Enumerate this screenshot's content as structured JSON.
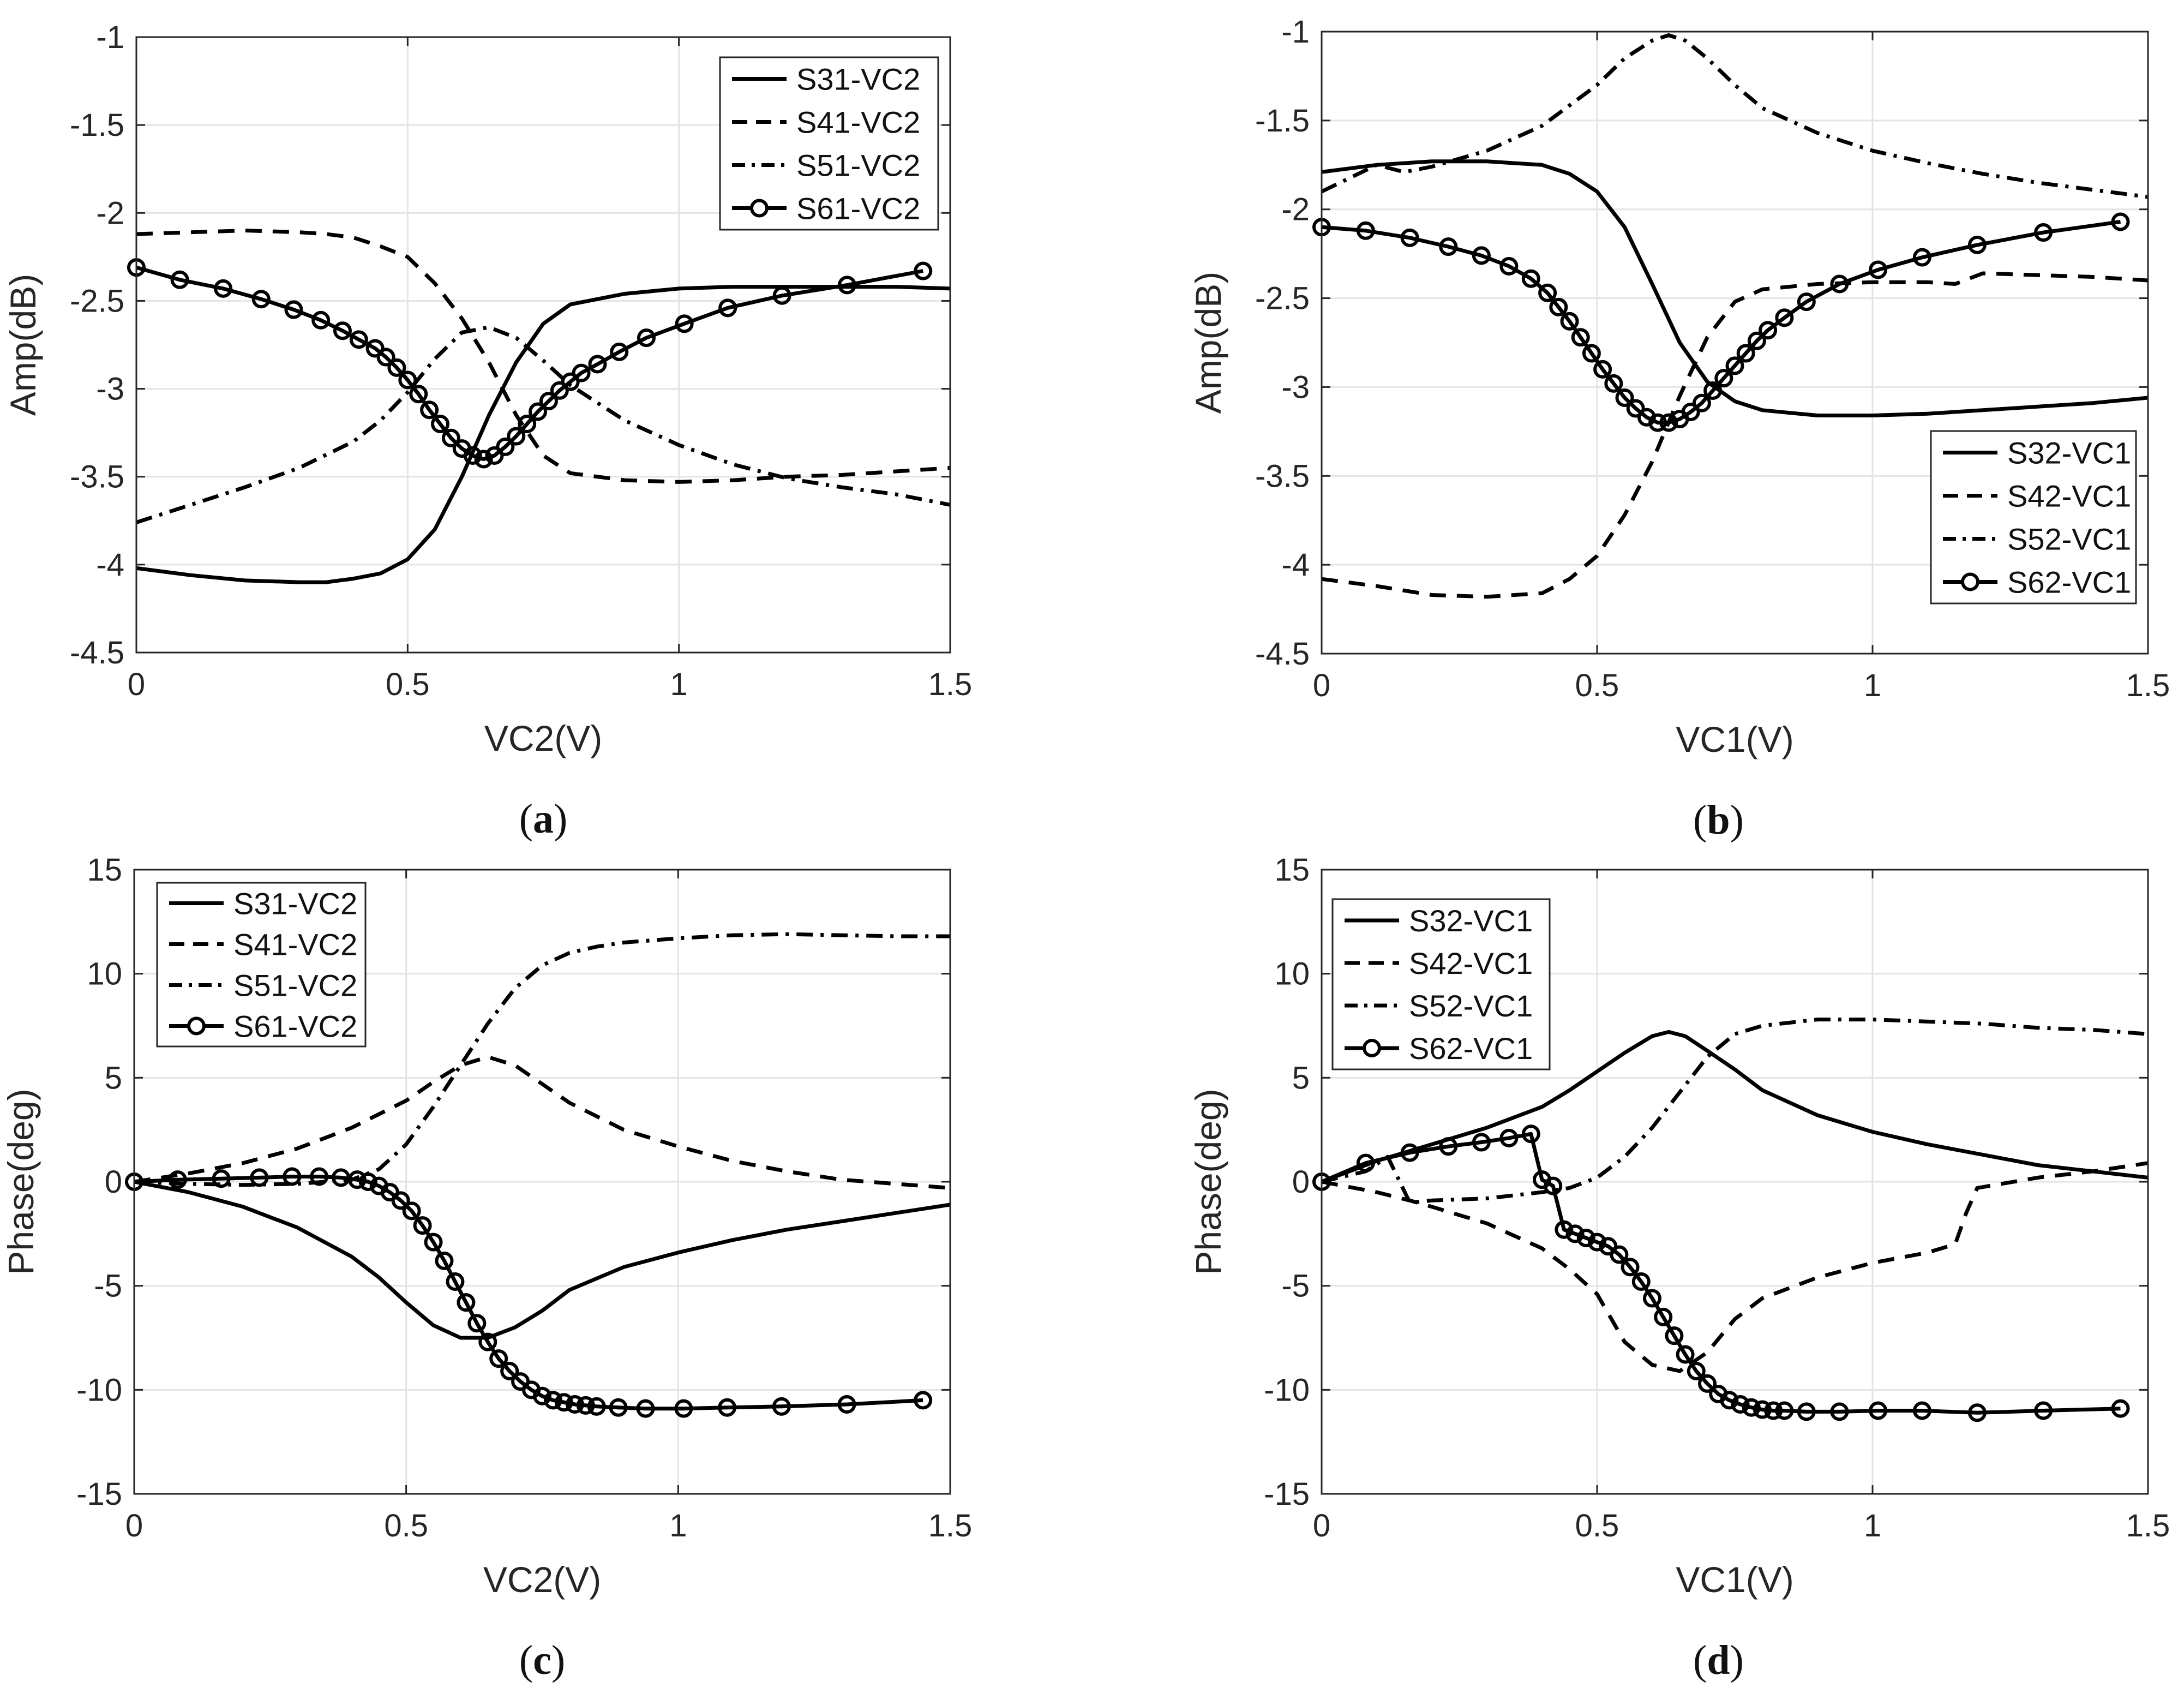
{
  "chart_data": [
    {
      "type": "line",
      "panel": "a",
      "caption_open": "(",
      "caption_letter": "a",
      "caption_close": ")",
      "xlabel": "VC2(V)",
      "ylabel": "Amp(dB)",
      "xlim": [
        0,
        1.5
      ],
      "ylim": [
        -4.5,
        -1
      ],
      "xticks": [
        0,
        0.5,
        1,
        1.5
      ],
      "xtick_labels": [
        "0",
        "0.5",
        "1",
        "1.5"
      ],
      "yticks": [
        -4.5,
        -4,
        -3.5,
        -3,
        -2.5,
        -2,
        -1.5,
        -1
      ],
      "ytick_labels": [
        "-4.5",
        "-4",
        "-3.5",
        "-3",
        "-2.5",
        "-2",
        "-1.5",
        "-1"
      ],
      "grid": true,
      "legend_position": "top-right",
      "series": [
        {
          "name": "S31-VC2",
          "style": "solid",
          "markers": false,
          "x": [
            0,
            0.1,
            0.2,
            0.3,
            0.35,
            0.4,
            0.45,
            0.5,
            0.55,
            0.6,
            0.65,
            0.7,
            0.75,
            0.8,
            0.9,
            1.0,
            1.1,
            1.2,
            1.3,
            1.4,
            1.5
          ],
          "y": [
            -4.02,
            -4.06,
            -4.09,
            -4.1,
            -4.1,
            -4.08,
            -4.05,
            -3.97,
            -3.8,
            -3.5,
            -3.15,
            -2.85,
            -2.63,
            -2.52,
            -2.46,
            -2.43,
            -2.42,
            -2.42,
            -2.42,
            -2.42,
            -2.43
          ]
        },
        {
          "name": "S41-VC2",
          "style": "dashed",
          "markers": false,
          "x": [
            0,
            0.1,
            0.2,
            0.3,
            0.35,
            0.4,
            0.45,
            0.5,
            0.55,
            0.6,
            0.65,
            0.7,
            0.75,
            0.8,
            0.9,
            1.0,
            1.1,
            1.2,
            1.3,
            1.4,
            1.5
          ],
          "y": [
            -2.12,
            -2.11,
            -2.1,
            -2.11,
            -2.12,
            -2.14,
            -2.19,
            -2.25,
            -2.4,
            -2.6,
            -2.85,
            -3.15,
            -3.38,
            -3.48,
            -3.52,
            -3.53,
            -3.52,
            -3.5,
            -3.49,
            -3.47,
            -3.45
          ]
        },
        {
          "name": "S51-VC2",
          "style": "dashdot",
          "markers": false,
          "x": [
            0,
            0.1,
            0.2,
            0.3,
            0.4,
            0.45,
            0.5,
            0.55,
            0.6,
            0.65,
            0.7,
            0.75,
            0.8,
            0.9,
            1.0,
            1.1,
            1.2,
            1.3,
            1.4,
            1.5
          ],
          "y": [
            -3.76,
            -3.66,
            -3.56,
            -3.45,
            -3.3,
            -3.18,
            -3.02,
            -2.83,
            -2.68,
            -2.65,
            -2.71,
            -2.84,
            -2.98,
            -3.18,
            -3.32,
            -3.43,
            -3.51,
            -3.56,
            -3.6,
            -3.66
          ]
        },
        {
          "name": "S61-VC2",
          "style": "solid",
          "markers": true,
          "x": [
            0,
            0.08,
            0.16,
            0.23,
            0.29,
            0.34,
            0.38,
            0.41,
            0.44,
            0.46,
            0.48,
            0.5,
            0.52,
            0.54,
            0.56,
            0.58,
            0.6,
            0.62,
            0.64,
            0.66,
            0.68,
            0.7,
            0.72,
            0.74,
            0.76,
            0.78,
            0.8,
            0.82,
            0.85,
            0.89,
            0.94,
            1.01,
            1.09,
            1.19,
            1.31,
            1.45
          ],
          "y": [
            -2.31,
            -2.38,
            -2.43,
            -2.49,
            -2.55,
            -2.61,
            -2.67,
            -2.72,
            -2.77,
            -2.82,
            -2.88,
            -2.95,
            -3.03,
            -3.12,
            -3.2,
            -3.28,
            -3.34,
            -3.38,
            -3.4,
            -3.38,
            -3.33,
            -3.27,
            -3.2,
            -3.13,
            -3.07,
            -3.01,
            -2.96,
            -2.91,
            -2.86,
            -2.79,
            -2.71,
            -2.63,
            -2.54,
            -2.47,
            -2.41,
            -2.33
          ]
        }
      ]
    },
    {
      "type": "line",
      "panel": "b",
      "caption_open": "(",
      "caption_letter": "b",
      "caption_close": ")",
      "xlabel": "VC1(V)",
      "ylabel": "Amp(dB)",
      "xlim": [
        0,
        1.5
      ],
      "ylim": [
        -4.5,
        -1
      ],
      "xticks": [
        0,
        0.5,
        1,
        1.5
      ],
      "xtick_labels": [
        "0",
        "0.5",
        "1",
        "1.5"
      ],
      "yticks": [
        -4.5,
        -4,
        -3.5,
        -3,
        -2.5,
        -2,
        -1.5,
        -1
      ],
      "ytick_labels": [
        "-4.5",
        "-4",
        "-3.5",
        "-3",
        "-2.5",
        "-2",
        "-1.5",
        "-1"
      ],
      "grid": true,
      "legend_position": "bottom-right",
      "series": [
        {
          "name": "S32-VC1",
          "style": "solid",
          "markers": false,
          "x": [
            0,
            0.1,
            0.2,
            0.3,
            0.4,
            0.45,
            0.5,
            0.55,
            0.6,
            0.65,
            0.7,
            0.75,
            0.8,
            0.9,
            1.0,
            1.1,
            1.2,
            1.3,
            1.4,
            1.5
          ],
          "y": [
            -1.79,
            -1.75,
            -1.73,
            -1.73,
            -1.75,
            -1.8,
            -1.9,
            -2.1,
            -2.42,
            -2.75,
            -2.97,
            -3.08,
            -3.13,
            -3.16,
            -3.16,
            -3.15,
            -3.13,
            -3.11,
            -3.09,
            -3.06
          ]
        },
        {
          "name": "S42-VC1",
          "style": "dashed",
          "markers": false,
          "x": [
            0,
            0.1,
            0.2,
            0.3,
            0.4,
            0.45,
            0.5,
            0.55,
            0.6,
            0.65,
            0.7,
            0.75,
            0.8,
            0.9,
            1.0,
            1.1,
            1.15,
            1.2,
            1.3,
            1.4,
            1.5
          ],
          "y": [
            -4.08,
            -4.12,
            -4.17,
            -4.18,
            -4.16,
            -4.08,
            -3.95,
            -3.72,
            -3.42,
            -3.05,
            -2.72,
            -2.52,
            -2.45,
            -2.42,
            -2.41,
            -2.41,
            -2.42,
            -2.36,
            -2.37,
            -2.38,
            -2.4
          ]
        },
        {
          "name": "S52-VC1",
          "style": "dashdot",
          "markers": false,
          "x": [
            0,
            0.1,
            0.15,
            0.2,
            0.3,
            0.4,
            0.5,
            0.55,
            0.6,
            0.63,
            0.66,
            0.7,
            0.75,
            0.8,
            0.9,
            1.0,
            1.1,
            1.2,
            1.3,
            1.4,
            1.5
          ],
          "y": [
            -1.9,
            -1.75,
            -1.79,
            -1.76,
            -1.67,
            -1.53,
            -1.3,
            -1.15,
            -1.05,
            -1.02,
            -1.05,
            -1.15,
            -1.3,
            -1.43,
            -1.57,
            -1.67,
            -1.74,
            -1.8,
            -1.85,
            -1.89,
            -1.93
          ]
        },
        {
          "name": "S62-VC1",
          "style": "solid",
          "markers": true,
          "x": [
            0,
            0.08,
            0.16,
            0.23,
            0.29,
            0.34,
            0.38,
            0.41,
            0.43,
            0.45,
            0.47,
            0.49,
            0.51,
            0.53,
            0.55,
            0.57,
            0.59,
            0.61,
            0.63,
            0.65,
            0.67,
            0.69,
            0.71,
            0.73,
            0.75,
            0.77,
            0.79,
            0.81,
            0.84,
            0.88,
            0.94,
            1.01,
            1.09,
            1.19,
            1.31,
            1.45
          ],
          "y": [
            -2.1,
            -2.12,
            -2.16,
            -2.21,
            -2.26,
            -2.32,
            -2.39,
            -2.47,
            -2.55,
            -2.63,
            -2.72,
            -2.81,
            -2.9,
            -2.98,
            -3.06,
            -3.12,
            -3.17,
            -3.2,
            -3.2,
            -3.18,
            -3.14,
            -3.09,
            -3.02,
            -2.95,
            -2.88,
            -2.81,
            -2.74,
            -2.68,
            -2.61,
            -2.52,
            -2.42,
            -2.34,
            -2.27,
            -2.2,
            -2.13,
            -2.07
          ]
        }
      ]
    },
    {
      "type": "line",
      "panel": "c",
      "caption_open": "(",
      "caption_letter": "c",
      "caption_close": ")",
      "xlabel": "VC2(V)",
      "ylabel": "Phase(deg)",
      "xlim": [
        0,
        1.5
      ],
      "ylim": [
        -15,
        15
      ],
      "xticks": [
        0,
        0.5,
        1,
        1.5
      ],
      "xtick_labels": [
        "0",
        "0.5",
        "1",
        "1.5"
      ],
      "yticks": [
        -15,
        -10,
        -5,
        0,
        5,
        10,
        15
      ],
      "ytick_labels": [
        "-15",
        "-10",
        "-5",
        "0",
        "5",
        "10",
        "15"
      ],
      "grid": true,
      "legend_position": "top-left",
      "series": [
        {
          "name": "S31-VC2",
          "style": "solid",
          "markers": false,
          "x": [
            0,
            0.1,
            0.2,
            0.3,
            0.4,
            0.45,
            0.5,
            0.55,
            0.6,
            0.65,
            0.7,
            0.75,
            0.8,
            0.9,
            1.0,
            1.1,
            1.2,
            1.3,
            1.4,
            1.5
          ],
          "y": [
            0,
            -0.5,
            -1.2,
            -2.2,
            -3.6,
            -4.6,
            -5.8,
            -6.9,
            -7.5,
            -7.5,
            -7.0,
            -6.2,
            -5.2,
            -4.1,
            -3.4,
            -2.8,
            -2.3,
            -1.9,
            -1.5,
            -1.1
          ]
        },
        {
          "name": "S41-VC2",
          "style": "dashed",
          "markers": false,
          "x": [
            0,
            0.1,
            0.2,
            0.3,
            0.4,
            0.5,
            0.55,
            0.6,
            0.65,
            0.7,
            0.75,
            0.8,
            0.9,
            1.0,
            1.1,
            1.2,
            1.3,
            1.4,
            1.5
          ],
          "y": [
            0,
            0.4,
            0.9,
            1.6,
            2.6,
            3.9,
            4.8,
            5.6,
            6.0,
            5.6,
            4.7,
            3.8,
            2.5,
            1.7,
            1.0,
            0.5,
            0.1,
            -0.1,
            -0.3
          ]
        },
        {
          "name": "S51-VC2",
          "style": "dashdot",
          "markers": false,
          "x": [
            0,
            0.1,
            0.2,
            0.3,
            0.4,
            0.45,
            0.5,
            0.55,
            0.6,
            0.65,
            0.7,
            0.75,
            0.8,
            0.85,
            0.9,
            1.0,
            1.1,
            1.2,
            1.3,
            1.4,
            1.5
          ],
          "y": [
            0,
            -0.1,
            -0.15,
            -0.1,
            0.1,
            0.6,
            1.8,
            3.6,
            5.6,
            7.6,
            9.3,
            10.4,
            11.0,
            11.3,
            11.5,
            11.7,
            11.85,
            11.9,
            11.85,
            11.8,
            11.8
          ]
        },
        {
          "name": "S61-VC2",
          "style": "solid",
          "markers": true,
          "x": [
            0,
            0.08,
            0.16,
            0.23,
            0.29,
            0.34,
            0.38,
            0.41,
            0.43,
            0.45,
            0.47,
            0.49,
            0.51,
            0.53,
            0.55,
            0.57,
            0.59,
            0.61,
            0.63,
            0.65,
            0.67,
            0.69,
            0.71,
            0.73,
            0.75,
            0.77,
            0.79,
            0.81,
            0.83,
            0.85,
            0.89,
            0.94,
            1.01,
            1.09,
            1.19,
            1.31,
            1.45
          ],
          "y": [
            0,
            0.1,
            0.15,
            0.2,
            0.25,
            0.25,
            0.2,
            0.1,
            0,
            -0.2,
            -0.5,
            -0.9,
            -1.4,
            -2.1,
            -2.9,
            -3.8,
            -4.8,
            -5.8,
            -6.8,
            -7.7,
            -8.5,
            -9.1,
            -9.6,
            -10.0,
            -10.3,
            -10.5,
            -10.6,
            -10.7,
            -10.75,
            -10.8,
            -10.85,
            -10.9,
            -10.9,
            -10.85,
            -10.8,
            -10.7,
            -10.5
          ]
        }
      ]
    },
    {
      "type": "line",
      "panel": "d",
      "caption_open": "(",
      "caption_letter": "d",
      "caption_close": ")",
      "xlabel": "VC1(V)",
      "ylabel": "Phase(deg)",
      "xlim": [
        0,
        1.5
      ],
      "ylim": [
        -15,
        15
      ],
      "xticks": [
        0,
        0.5,
        1,
        1.5
      ],
      "xtick_labels": [
        "0",
        "0.5",
        "1",
        "1.5"
      ],
      "yticks": [
        -15,
        -10,
        -5,
        0,
        5,
        10,
        15
      ],
      "ytick_labels": [
        "-15",
        "-10",
        "-5",
        "0",
        "5",
        "10",
        "15"
      ],
      "grid": true,
      "legend_position": "top-left",
      "series": [
        {
          "name": "S32-VC1",
          "style": "solid",
          "markers": false,
          "x": [
            0,
            0.1,
            0.2,
            0.3,
            0.4,
            0.45,
            0.5,
            0.55,
            0.6,
            0.63,
            0.66,
            0.7,
            0.75,
            0.8,
            0.9,
            1.0,
            1.1,
            1.2,
            1.3,
            1.4,
            1.5
          ],
          "y": [
            0,
            1.0,
            1.8,
            2.6,
            3.6,
            4.4,
            5.3,
            6.2,
            7.0,
            7.2,
            7.0,
            6.3,
            5.4,
            4.4,
            3.2,
            2.4,
            1.8,
            1.3,
            0.8,
            0.5,
            0.2
          ]
        },
        {
          "name": "S42-VC1",
          "style": "dashed",
          "markers": false,
          "x": [
            0,
            0.1,
            0.13,
            0.16,
            0.2,
            0.3,
            0.4,
            0.45,
            0.5,
            0.55,
            0.6,
            0.65,
            0.7,
            0.75,
            0.8,
            0.9,
            1.0,
            1.1,
            1.15,
            1.17,
            1.19,
            1.3,
            1.4,
            1.5
          ],
          "y": [
            0,
            -0.5,
            -0.7,
            -0.9,
            -1.2,
            -2.0,
            -3.2,
            -4.2,
            -5.4,
            -7.7,
            -8.8,
            -9.1,
            -8.2,
            -6.6,
            -5.6,
            -4.6,
            -3.9,
            -3.4,
            -3.0,
            -1.5,
            -0.3,
            0.2,
            0.5,
            0.9
          ]
        },
        {
          "name": "S52-VC1",
          "style": "dashdot",
          "markers": false,
          "x": [
            0,
            0.08,
            0.12,
            0.16,
            0.2,
            0.3,
            0.4,
            0.45,
            0.5,
            0.55,
            0.6,
            0.65,
            0.7,
            0.75,
            0.8,
            0.9,
            1.0,
            1.1,
            1.2,
            1.3,
            1.4,
            1.5
          ],
          "y": [
            0,
            0.5,
            1.2,
            -1.0,
            -0.9,
            -0.8,
            -0.5,
            -0.3,
            0.2,
            1.2,
            2.6,
            4.3,
            6.0,
            7.1,
            7.5,
            7.8,
            7.8,
            7.7,
            7.6,
            7.4,
            7.3,
            7.1
          ]
        },
        {
          "name": "S62-VC1",
          "style": "solid",
          "markers": true,
          "x": [
            0,
            0.08,
            0.16,
            0.23,
            0.29,
            0.34,
            0.38,
            0.4,
            0.42,
            0.44,
            0.46,
            0.48,
            0.5,
            0.52,
            0.54,
            0.56,
            0.58,
            0.6,
            0.62,
            0.64,
            0.66,
            0.68,
            0.7,
            0.72,
            0.74,
            0.76,
            0.78,
            0.8,
            0.82,
            0.84,
            0.88,
            0.94,
            1.01,
            1.09,
            1.19,
            1.31,
            1.45
          ],
          "y": [
            0,
            0.9,
            1.4,
            1.7,
            1.9,
            2.1,
            2.3,
            0.1,
            -0.2,
            -2.3,
            -2.5,
            -2.7,
            -2.9,
            -3.1,
            -3.5,
            -4.1,
            -4.8,
            -5.6,
            -6.5,
            -7.4,
            -8.3,
            -9.1,
            -9.7,
            -10.2,
            -10.5,
            -10.7,
            -10.85,
            -10.95,
            -11.0,
            -11.0,
            -11.05,
            -11.05,
            -11.0,
            -11.0,
            -11.1,
            -11.0,
            -10.9
          ]
        }
      ]
    }
  ]
}
